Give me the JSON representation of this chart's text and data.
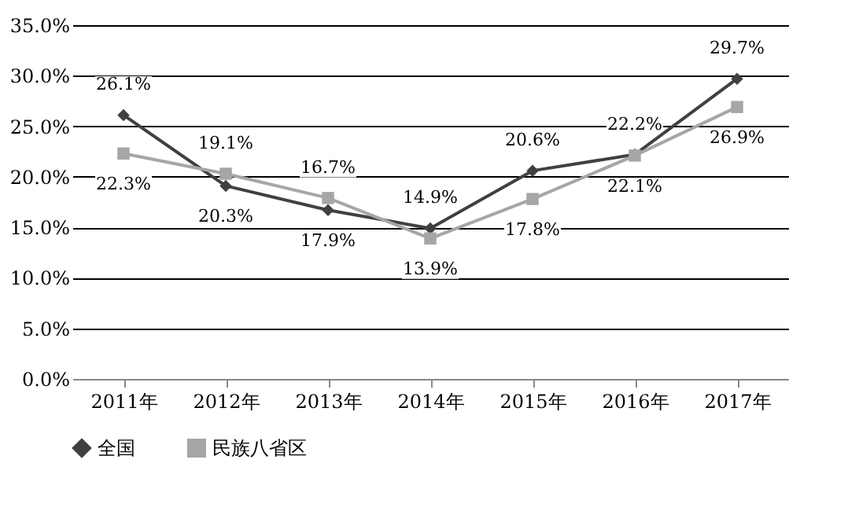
{
  "chart_data": {
    "type": "line",
    "categories": [
      "2011年",
      "2012年",
      "2013年",
      "2014年",
      "2015年",
      "2016年",
      "2017年"
    ],
    "series": [
      {
        "name": "全国",
        "color": "#404040",
        "marker": "diamond",
        "values": [
          26.1,
          19.1,
          16.7,
          14.9,
          20.6,
          22.2,
          29.7
        ],
        "value_labels": [
          "26.1%",
          "19.1%",
          "16.7%",
          "14.9%",
          "20.6%",
          "22.2%",
          "29.7%"
        ]
      },
      {
        "name": "民族八省区",
        "color": "#a6a6a6",
        "marker": "square",
        "values": [
          22.3,
          20.3,
          17.9,
          13.9,
          17.8,
          22.1,
          26.9
        ],
        "value_labels": [
          "22.3%",
          "20.3%",
          "17.9%",
          "13.9%",
          "17.8%",
          "22.1%",
          "26.9%"
        ]
      }
    ],
    "ylim": [
      0,
      35
    ],
    "yticks": [
      {
        "value": 0,
        "label": "0.0%"
      },
      {
        "value": 5,
        "label": "5.0%"
      },
      {
        "value": 10,
        "label": "10.0%"
      },
      {
        "value": 15,
        "label": "15.0%"
      },
      {
        "value": 20,
        "label": "20.0%"
      },
      {
        "value": 25,
        "label": "25.0%"
      },
      {
        "value": 30,
        "label": "30.0%"
      },
      {
        "value": 35,
        "label": "35.0%"
      }
    ],
    "grid": "y",
    "legend": "bottom",
    "line_style": "solid"
  }
}
